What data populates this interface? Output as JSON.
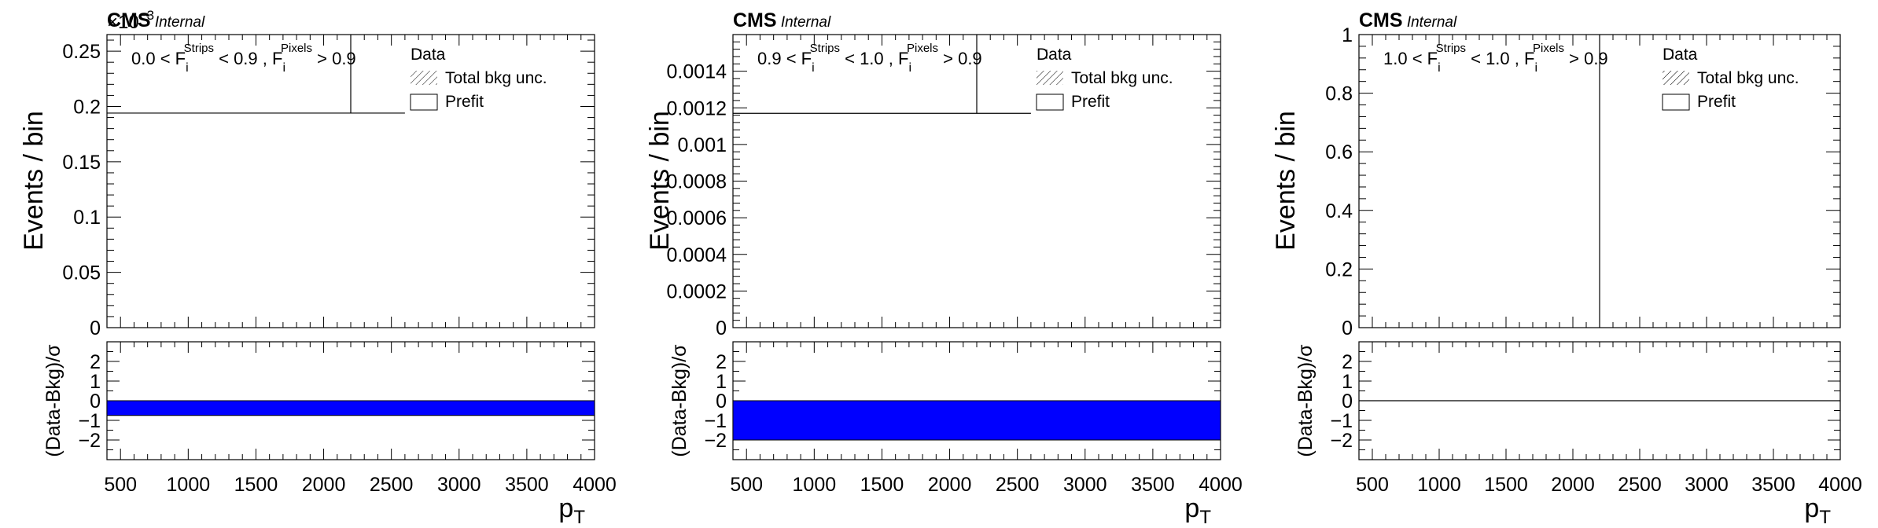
{
  "panels": [
    {
      "cms_label": "CMS",
      "internal_label": "Internal",
      "exponent_label": "×10",
      "exponent_power": "−3",
      "region_label": {
        "p1": "0.0 < F",
        "sub1": "i",
        "sup1": "Strips",
        "p2": " < 0.9 , F",
        "sub2": "i",
        "sup2": "Pixels",
        "p3": " > 0.9"
      },
      "legend": [
        {
          "kind": "data",
          "label": "Data"
        },
        {
          "kind": "hatch",
          "label": "Total bkg unc."
        },
        {
          "kind": "box",
          "label": "Prefit"
        }
      ],
      "chart_data": {
        "type": "line",
        "ylabel": "Events / bin",
        "xlabel": "p",
        "xlabel_sub": "T",
        "xlim": [
          400,
          4000
        ],
        "ylim": [
          0,
          0.000265
        ],
        "yticks": [
          0,
          5e-05,
          0.0001,
          0.00015,
          0.0002,
          0.00025
        ],
        "ytick_labels": [
          "0",
          "0.05",
          "0.1",
          "0.15",
          "0.2",
          "0.25"
        ],
        "xticks": [
          500,
          1000,
          1500,
          2000,
          2500,
          3000,
          3500,
          4000
        ],
        "prefit_line": {
          "x": [
            400,
            2600
          ],
          "y": 0.000194
        },
        "data_marker": {
          "x": 2200,
          "y_top": 0.000194
        },
        "ratio": {
          "ylabel": "(Data-Bkg)/σ",
          "ylim": [
            -3,
            3
          ],
          "yticks": [
            -2,
            -1,
            0,
            1,
            2
          ],
          "band": [
            -0.75,
            0
          ],
          "band_color": "#0000ff"
        }
      }
    },
    {
      "cms_label": "CMS",
      "internal_label": "Internal",
      "exponent_label": "",
      "exponent_power": "",
      "region_label": {
        "p1": "0.9 < F",
        "sub1": "i",
        "sup1": "Strips",
        "p2": " < 1.0 , F",
        "sub2": "i",
        "sup2": "Pixels",
        "p3": " > 0.9"
      },
      "legend": [
        {
          "kind": "data",
          "label": "Data"
        },
        {
          "kind": "hatch",
          "label": "Total bkg unc."
        },
        {
          "kind": "box",
          "label": "Prefit"
        }
      ],
      "chart_data": {
        "type": "line",
        "ylabel": "Events / bin",
        "xlabel": "p",
        "xlabel_sub": "T",
        "xlim": [
          400,
          4000
        ],
        "ylim": [
          0,
          0.0016
        ],
        "yticks": [
          0,
          0.0002,
          0.0004,
          0.0006,
          0.0008,
          0.001,
          0.0012,
          0.0014
        ],
        "ytick_labels": [
          "0",
          "0.0002",
          "0.0004",
          "0.0006",
          "0.0008",
          "0.001",
          "0.0012",
          "0.0014"
        ],
        "xticks": [
          500,
          1000,
          1500,
          2000,
          2500,
          3000,
          3500,
          4000
        ],
        "prefit_line": {
          "x": [
            400,
            2600
          ],
          "y": 0.00117
        },
        "data_marker": {
          "x": 2200,
          "y_top": 0.00117
        },
        "ratio": {
          "ylabel": "(Data-Bkg)/σ",
          "ylim": [
            -3,
            3
          ],
          "yticks": [
            -2,
            -1,
            0,
            1,
            2
          ],
          "band": [
            -2,
            0
          ],
          "band_color": "#0000ff"
        }
      }
    },
    {
      "cms_label": "CMS",
      "internal_label": "Internal",
      "exponent_label": "",
      "exponent_power": "",
      "region_label": {
        "p1": "1.0 < F",
        "sub1": "i",
        "sup1": "Strips",
        "p2": " < 1.0 , F",
        "sub2": "i",
        "sup2": "Pixels",
        "p3": " > 0.9"
      },
      "legend": [
        {
          "kind": "data",
          "label": "Data"
        },
        {
          "kind": "hatch",
          "label": "Total bkg unc."
        },
        {
          "kind": "box",
          "label": "Prefit"
        }
      ],
      "chart_data": {
        "type": "line",
        "ylabel": "Events / bin",
        "xlabel": "p",
        "xlabel_sub": "T",
        "xlim": [
          400,
          4000
        ],
        "ylim": [
          0,
          1
        ],
        "yticks": [
          0,
          0.2,
          0.4,
          0.6,
          0.8,
          1
        ],
        "ytick_labels": [
          "0",
          "0.2",
          "0.4",
          "0.6",
          "0.8",
          "1"
        ],
        "xticks": [
          500,
          1000,
          1500,
          2000,
          2500,
          3000,
          3500,
          4000
        ],
        "prefit_line": null,
        "data_marker": {
          "x": 2200,
          "y_top": 1
        },
        "ratio": {
          "ylabel": "(Data-Bkg)/σ",
          "ylim": [
            -3,
            3
          ],
          "yticks": [
            -2,
            -1,
            0,
            1,
            2
          ],
          "band": null,
          "band_color": "#0000ff",
          "line_at": 0
        }
      }
    }
  ]
}
